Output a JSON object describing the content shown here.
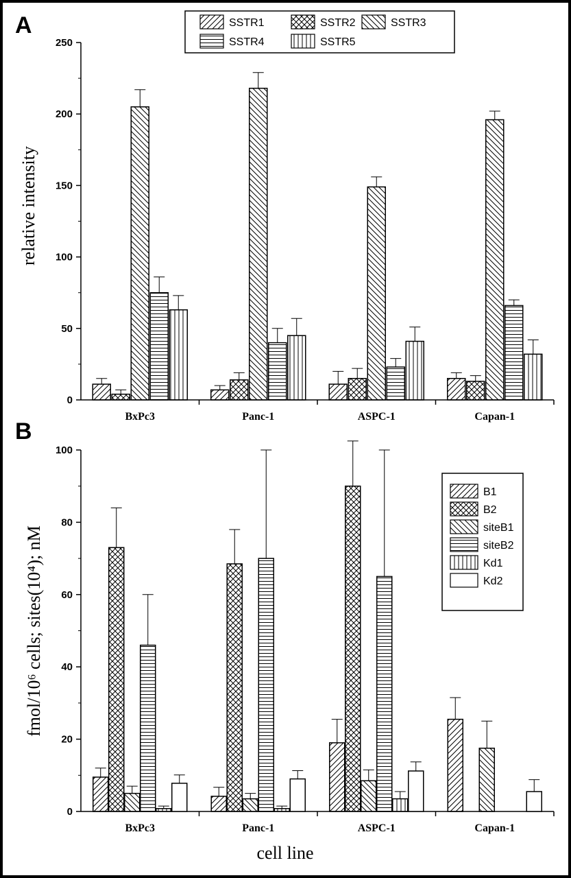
{
  "panels": {
    "a_label": "A",
    "b_label": "B"
  },
  "xlabel": "cell line",
  "chart_data": [
    {
      "type": "bar",
      "panel": "A",
      "ylabel": "relative intensity",
      "ylim": [
        0,
        250
      ],
      "yticks": [
        "0",
        "50",
        "100",
        "150",
        "200",
        "250"
      ],
      "categories": [
        "BxPc3",
        "Panc-1",
        "ASPC-1",
        "Capan-1"
      ],
      "legend_placement": "top",
      "series": [
        {
          "name": "SSTR1",
          "pattern": "diag-up",
          "values": [
            11,
            7,
            11,
            15
          ],
          "errors": [
            4,
            3,
            9,
            4
          ]
        },
        {
          "name": "SSTR2",
          "pattern": "crosshatch",
          "values": [
            4,
            14,
            15,
            13
          ],
          "errors": [
            3,
            5,
            7,
            4
          ]
        },
        {
          "name": "SSTR3",
          "pattern": "diag-down",
          "values": [
            205,
            218,
            149,
            196
          ],
          "errors": [
            12,
            11,
            7,
            6
          ]
        },
        {
          "name": "SSTR4",
          "pattern": "horizontal",
          "values": [
            75,
            40,
            23,
            66
          ],
          "errors": [
            11,
            10,
            6,
            4
          ]
        },
        {
          "name": "SSTR5",
          "pattern": "vertical",
          "values": [
            63,
            45,
            41,
            32
          ],
          "errors": [
            10,
            12,
            10,
            10
          ]
        }
      ]
    },
    {
      "type": "bar",
      "panel": "B",
      "ylabel": "fmol/10⁶ cells; sites(10⁴); nM",
      "ylim": [
        0,
        100
      ],
      "yticks": [
        "0",
        "20",
        "40",
        "60",
        "80",
        "100"
      ],
      "categories": [
        "BxPc3",
        "Panc-1",
        "ASPC-1",
        "Capan-1"
      ],
      "legend_placement": "top-right",
      "series": [
        {
          "name": "B1",
          "pattern": "diag-up",
          "values": [
            9.5,
            4.2,
            19,
            25.5
          ],
          "errors": [
            2.5,
            2.5,
            6.5,
            6
          ]
        },
        {
          "name": "B2",
          "pattern": "crosshatch",
          "values": [
            73,
            68.5,
            90,
            null
          ],
          "errors": [
            11,
            9.5,
            12.5,
            null
          ]
        },
        {
          "name": "siteB1",
          "pattern": "diag-down",
          "values": [
            5,
            3.5,
            8.5,
            17.5
          ],
          "errors": [
            2,
            1.5,
            3,
            7.5
          ]
        },
        {
          "name": "siteB2",
          "pattern": "horizontal",
          "values": [
            46,
            70,
            65,
            null
          ],
          "errors": [
            14,
            30,
            35,
            null
          ]
        },
        {
          "name": "Kd1",
          "pattern": "vertical",
          "values": [
            0.8,
            0.8,
            3.5,
            null
          ],
          "errors": [
            0.7,
            0.7,
            2,
            null
          ]
        },
        {
          "name": "Kd2",
          "pattern": "empty",
          "values": [
            7.8,
            9,
            11.2,
            5.5
          ],
          "errors": [
            2.3,
            2.3,
            2.5,
            3.3
          ]
        }
      ]
    }
  ]
}
